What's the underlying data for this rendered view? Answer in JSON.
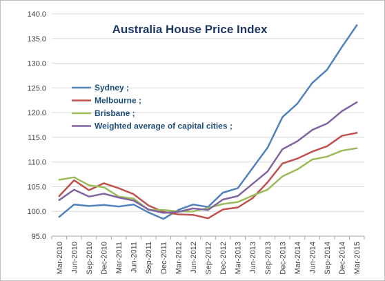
{
  "chart_data": {
    "type": "line",
    "title": "Australia House Price Index",
    "xlabel": "",
    "ylabel": "",
    "ylim": [
      95.0,
      140.0
    ],
    "yticks": [
      "95.0",
      "100.0",
      "105.0",
      "110.0",
      "115.0",
      "120.0",
      "125.0",
      "130.0",
      "135.0",
      "140.0"
    ],
    "grid": true,
    "legend_position": "upper-left",
    "categories": [
      "Mar-2010",
      "Jun-2010",
      "Sep-2010",
      "Dec-2010",
      "Mar-2011",
      "Jun-2011",
      "Sep-2011",
      "Dec-2011",
      "Mar-2012",
      "Jun-2012",
      "Sep-2012",
      "Dec-2012",
      "Mar-2013",
      "Jun-2013",
      "Sep-2013",
      "Dec-2013",
      "Mar-2014",
      "Jun-2014",
      "Sep-2014",
      "Dec-2014",
      "Mar-2015"
    ],
    "series": [
      {
        "name": "Sydney ;",
        "color": "#4f81bd",
        "values": [
          98.9,
          101.4,
          101.1,
          101.3,
          101.0,
          101.4,
          99.8,
          98.5,
          100.3,
          101.4,
          100.9,
          103.8,
          104.7,
          108.8,
          112.9,
          119.1,
          121.8,
          126.0,
          128.7,
          133.3,
          137.7
        ]
      },
      {
        "name": "Melbourne ;",
        "color": "#c0504d",
        "values": [
          103.1,
          106.3,
          104.3,
          105.7,
          104.7,
          103.5,
          101.2,
          99.9,
          99.4,
          99.3,
          98.6,
          100.4,
          100.8,
          102.7,
          105.9,
          109.7,
          110.7,
          112.1,
          113.2,
          115.3,
          115.9
        ]
      },
      {
        "name": "Brisbane ;",
        "color": "#9bbb59",
        "values": [
          106.4,
          106.9,
          105.3,
          104.9,
          103.0,
          102.6,
          100.3,
          100.3,
          100.0,
          100.0,
          100.7,
          101.5,
          101.9,
          103.2,
          104.4,
          107.1,
          108.5,
          110.5,
          111.1,
          112.3,
          112.8
        ]
      },
      {
        "name": "Weighted average of capital cities ;",
        "color": "#8064a2",
        "values": [
          102.3,
          104.4,
          103.0,
          103.6,
          102.8,
          102.2,
          100.4,
          99.7,
          99.9,
          100.6,
          100.3,
          102.4,
          103.1,
          105.6,
          108.1,
          112.6,
          114.2,
          116.5,
          117.8,
          120.3,
          122.1
        ]
      }
    ]
  }
}
